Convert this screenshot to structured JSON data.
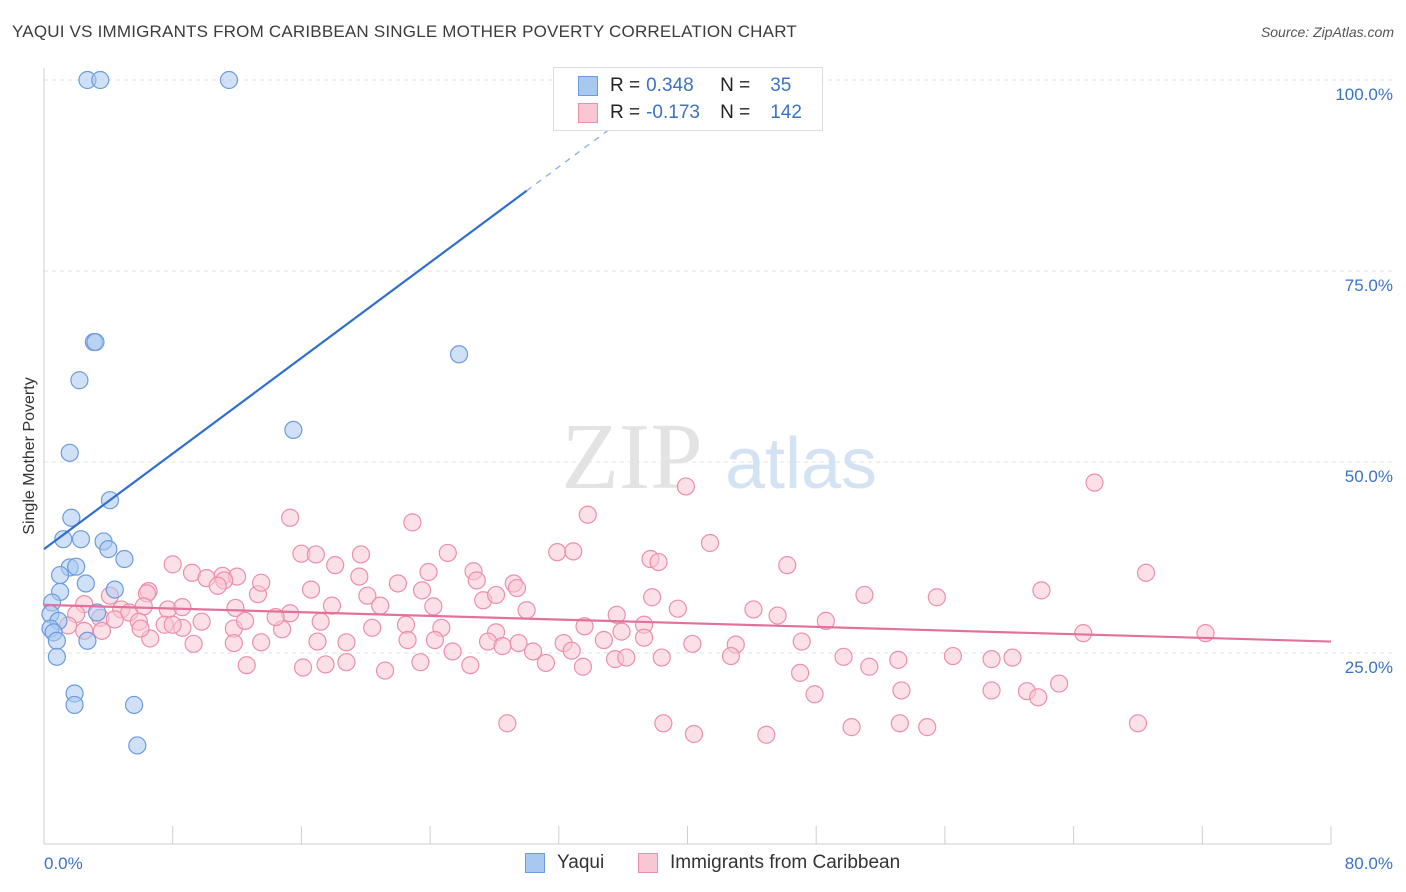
{
  "title": "YAQUI VS IMMIGRANTS FROM CARIBBEAN SINGLE MOTHER POVERTY CORRELATION CHART",
  "source": "Source: ZipAtlas.com",
  "watermark": {
    "zip": "ZIP",
    "atlas": "atlas"
  },
  "legend": {
    "rows": [
      {
        "r_label": "R =",
        "r_value": "0.348",
        "n_label": "N =",
        "n_value": "35",
        "color": "#a9c8f0",
        "border": "#6c9be0"
      },
      {
        "r_label": "R =",
        "r_value": "-0.173",
        "n_label": "N =",
        "n_value": "142",
        "color": "#f9c6d4",
        "border": "#ec8fab"
      }
    ]
  },
  "bottom_legend": [
    {
      "label": "Yaqui",
      "color": "#a9c8f0",
      "border": "#6c9be0"
    },
    {
      "label": "Immigrants from Caribbean",
      "color": "#f9c6d4",
      "border": "#ec8fab"
    }
  ],
  "chart_data": {
    "type": "scatter",
    "xlabel": "",
    "ylabel": "Single Mother Poverty",
    "xlim": [
      0,
      80
    ],
    "ylim": [
      0,
      100
    ],
    "x_tick_labels": [
      {
        "value": 0,
        "label": "0.0%"
      },
      {
        "value": 80,
        "label": "80.0%"
      }
    ],
    "y_tick_labels": [
      {
        "value": 25,
        "label": "25.0%"
      },
      {
        "value": 50,
        "label": "50.0%"
      },
      {
        "value": 75,
        "label": "75.0%"
      },
      {
        "value": 100,
        "label": "100.0%"
      }
    ],
    "grid": true,
    "series": [
      {
        "name": "Yaqui",
        "color": "#6c9be0",
        "fill": "#a9c8f0",
        "trend": {
          "x0": 0,
          "y0": 38.6,
          "x1": 30,
          "y1": 85.5,
          "dash_to_x": 37
        },
        "points": [
          [
            2.7,
            100
          ],
          [
            3.5,
            100
          ],
          [
            11.5,
            100
          ],
          [
            3.1,
            65.7
          ],
          [
            3.2,
            65.7
          ],
          [
            25.8,
            64.1
          ],
          [
            2.2,
            60.7
          ],
          [
            15.5,
            54.2
          ],
          [
            1.6,
            51.2
          ],
          [
            4.1,
            45
          ],
          [
            1.7,
            42.7
          ],
          [
            1.2,
            39.9
          ],
          [
            2.3,
            39.9
          ],
          [
            3.7,
            39.6
          ],
          [
            4,
            38.6
          ],
          [
            5,
            37.3
          ],
          [
            1.6,
            36.2
          ],
          [
            2,
            36.3
          ],
          [
            1,
            35.2
          ],
          [
            2.6,
            34.1
          ],
          [
            4.4,
            33.3
          ],
          [
            1,
            33
          ],
          [
            0.5,
            31.6
          ],
          [
            3.3,
            30.3
          ],
          [
            0.4,
            30.1
          ],
          [
            0.9,
            29.2
          ],
          [
            0.4,
            28.2
          ],
          [
            0.6,
            27.7
          ],
          [
            0.8,
            26.6
          ],
          [
            2.7,
            26.6
          ],
          [
            0.8,
            24.5
          ],
          [
            1.9,
            19.7
          ],
          [
            1.9,
            18.2
          ],
          [
            5.6,
            18.2
          ],
          [
            5.8,
            12.9
          ]
        ]
      },
      {
        "name": "Immigrants from Caribbean",
        "color": "#ec8fab",
        "fill": "#f9c6d4",
        "trend": {
          "x0": 0,
          "y0": 31.3,
          "x1": 80,
          "y1": 26.5
        },
        "points": [
          [
            39.9,
            46.8
          ],
          [
            65.3,
            47.3
          ],
          [
            15.3,
            42.7
          ],
          [
            22.9,
            42.1
          ],
          [
            33.8,
            43.1
          ],
          [
            41.4,
            39.4
          ],
          [
            25.1,
            38.1
          ],
          [
            31.9,
            38.2
          ],
          [
            32.9,
            38.3
          ],
          [
            37.7,
            37.3
          ],
          [
            38.2,
            36.9
          ],
          [
            46.2,
            36.5
          ],
          [
            16,
            38
          ],
          [
            16.9,
            37.9
          ],
          [
            19.7,
            37.9
          ],
          [
            8,
            36.6
          ],
          [
            18.1,
            36.5
          ],
          [
            23.9,
            35.6
          ],
          [
            26.7,
            35.7
          ],
          [
            68.5,
            35.5
          ],
          [
            6.5,
            33.1
          ],
          [
            11.1,
            35.1
          ],
          [
            12,
            35
          ],
          [
            19.6,
            35
          ],
          [
            22,
            34.1
          ],
          [
            26.9,
            34.5
          ],
          [
            29.2,
            34.1
          ],
          [
            6.4,
            32.8
          ],
          [
            13.3,
            32.7
          ],
          [
            16.6,
            33.3
          ],
          [
            20.1,
            32.5
          ],
          [
            27.3,
            31.9
          ],
          [
            28.1,
            32.6
          ],
          [
            29.4,
            33.5
          ],
          [
            9.2,
            35.5
          ],
          [
            10.1,
            34.8
          ],
          [
            11.2,
            34.5
          ],
          [
            4.1,
            32.5
          ],
          [
            10.8,
            33.8
          ],
          [
            13.5,
            34.2
          ],
          [
            23.5,
            33.2
          ],
          [
            37.8,
            32.3
          ],
          [
            62,
            33.2
          ],
          [
            51,
            32.6
          ],
          [
            55.5,
            32.3
          ],
          [
            2.5,
            31.4
          ],
          [
            4.8,
            30.7
          ],
          [
            5.3,
            30.3
          ],
          [
            6.2,
            31.1
          ],
          [
            7.7,
            30.7
          ],
          [
            8.6,
            31
          ],
          [
            11.9,
            30.9
          ],
          [
            15.3,
            30.2
          ],
          [
            17.9,
            31.2
          ],
          [
            20.9,
            31.2
          ],
          [
            24.2,
            31.1
          ],
          [
            30,
            30.6
          ],
          [
            35.6,
            30
          ],
          [
            39.4,
            30.8
          ],
          [
            44.1,
            30.7
          ],
          [
            45.6,
            29.9
          ],
          [
            37.3,
            28.7
          ],
          [
            2,
            30.1
          ],
          [
            3.5,
            29.6
          ],
          [
            4.4,
            29.4
          ],
          [
            5.9,
            29.1
          ],
          [
            7.5,
            28.7
          ],
          [
            8.6,
            28.3
          ],
          [
            11.8,
            28.2
          ],
          [
            14.8,
            28.1
          ],
          [
            17.2,
            29.1
          ],
          [
            20.4,
            28.3
          ],
          [
            22.5,
            28.7
          ],
          [
            24.7,
            28.3
          ],
          [
            28.1,
            27.7
          ],
          [
            33.6,
            28.5
          ],
          [
            35.9,
            27.8
          ],
          [
            37.3,
            27
          ],
          [
            1.5,
            28.6
          ],
          [
            6.6,
            26.9
          ],
          [
            9.3,
            26.2
          ],
          [
            11.8,
            26.3
          ],
          [
            13.5,
            26.4
          ],
          [
            17,
            26.5
          ],
          [
            18.8,
            26.4
          ],
          [
            22.6,
            26.7
          ],
          [
            24.3,
            26.7
          ],
          [
            27.6,
            26.5
          ],
          [
            29.5,
            26.3
          ],
          [
            32.3,
            26.3
          ],
          [
            34.8,
            26.7
          ],
          [
            40.3,
            26.2
          ],
          [
            43,
            26.1
          ],
          [
            2.5,
            27.9
          ],
          [
            3.6,
            27.9
          ],
          [
            6,
            28.2
          ],
          [
            8,
            28.7
          ],
          [
            9.8,
            29.1
          ],
          [
            12.5,
            29.2
          ],
          [
            14.4,
            29.7
          ],
          [
            48.6,
            29.2
          ],
          [
            47.1,
            26.5
          ],
          [
            28.5,
            25.9
          ],
          [
            30.4,
            25.2
          ],
          [
            32.8,
            25.3
          ],
          [
            25.4,
            25.2
          ],
          [
            26.5,
            23.4
          ],
          [
            21.2,
            22.7
          ],
          [
            17.5,
            23.5
          ],
          [
            12.6,
            23.4
          ],
          [
            16.1,
            23.1
          ],
          [
            18.8,
            23.8
          ],
          [
            23.4,
            23.8
          ],
          [
            31.2,
            23.7
          ],
          [
            33.5,
            23.2
          ],
          [
            35.5,
            24.2
          ],
          [
            36.2,
            24.4
          ],
          [
            38.4,
            24.4
          ],
          [
            42.7,
            24.6
          ],
          [
            47,
            22.4
          ],
          [
            49.7,
            24.5
          ],
          [
            51.3,
            23.2
          ],
          [
            53.1,
            24.1
          ],
          [
            56.5,
            24.6
          ],
          [
            58.9,
            24.2
          ],
          [
            60.2,
            24.4
          ],
          [
            64.6,
            27.6
          ],
          [
            72.2,
            27.6
          ],
          [
            47.9,
            19.6
          ],
          [
            53.3,
            20.1
          ],
          [
            58.9,
            20.1
          ],
          [
            61.1,
            20
          ],
          [
            61.8,
            19.2
          ],
          [
            28.8,
            15.8
          ],
          [
            38.5,
            15.8
          ],
          [
            53.2,
            15.8
          ],
          [
            68,
            15.8
          ],
          [
            40.4,
            14.4
          ],
          [
            44.9,
            14.3
          ],
          [
            50.2,
            15.3
          ],
          [
            54.9,
            15.3
          ],
          [
            63.1,
            21
          ]
        ]
      }
    ]
  }
}
